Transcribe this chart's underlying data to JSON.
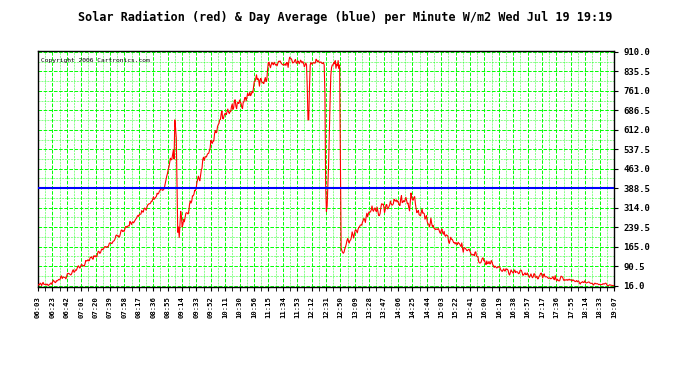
{
  "title": "Solar Radiation (red) & Day Average (blue) per Minute W/m2 Wed Jul 19 19:19",
  "copyright": "Copyright 2006 Cartronics.com",
  "bg_color": "#ffffff",
  "outer_bg_color": "#ffffff",
  "grid_color": "#00ff00",
  "line_color": "#ff0000",
  "avg_color": "#0000ff",
  "title_color": "#000000",
  "yticks": [
    16.0,
    90.5,
    165.0,
    239.5,
    314.0,
    388.5,
    463.0,
    537.5,
    612.0,
    686.5,
    761.0,
    835.5,
    910.0
  ],
  "ymin": 16.0,
  "ymax": 910.0,
  "avg_value": 388.5,
  "xtick_labels": [
    "06:03",
    "06:23",
    "06:42",
    "07:01",
    "07:20",
    "07:39",
    "07:58",
    "08:17",
    "08:36",
    "08:55",
    "09:14",
    "09:33",
    "09:52",
    "10:11",
    "10:30",
    "10:56",
    "11:15",
    "11:34",
    "11:53",
    "12:12",
    "12:31",
    "12:50",
    "13:09",
    "13:28",
    "13:47",
    "14:06",
    "14:25",
    "14:44",
    "15:03",
    "15:22",
    "15:41",
    "16:00",
    "16:19",
    "16:38",
    "16:57",
    "17:17",
    "17:36",
    "17:55",
    "18:14",
    "18:33",
    "19:07"
  ]
}
